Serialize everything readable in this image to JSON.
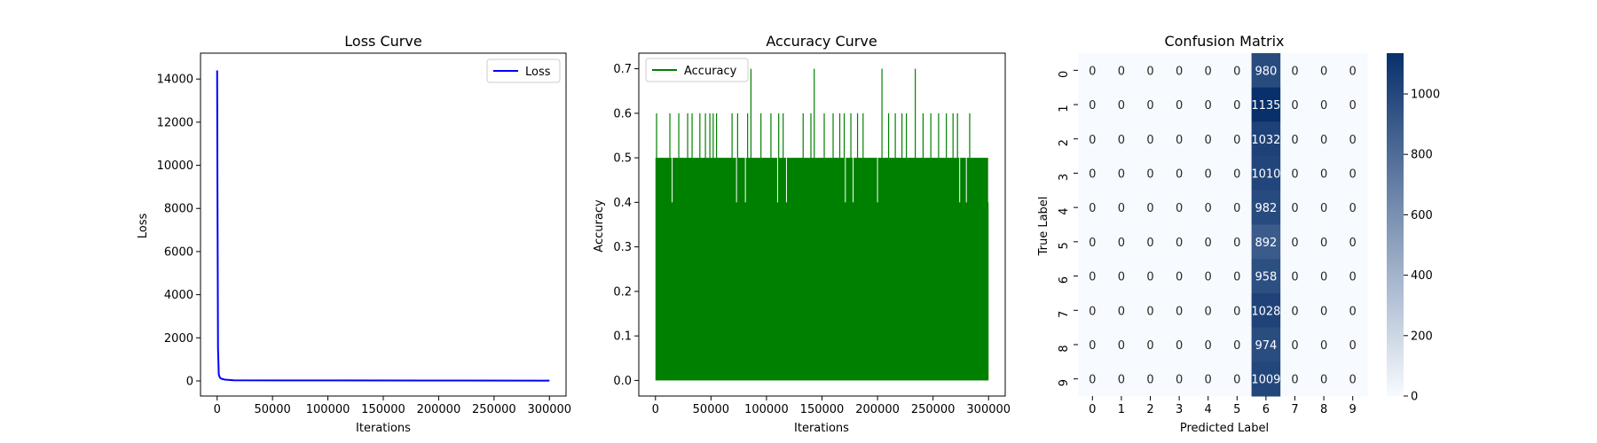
{
  "chart_data": [
    {
      "type": "line",
      "title": "Loss Curve",
      "xlabel": "Iterations",
      "ylabel": "Loss",
      "xlim": [
        -15000,
        315000
      ],
      "ylim": [
        -700,
        15200
      ],
      "xticks": [
        0,
        50000,
        100000,
        150000,
        200000,
        250000,
        300000
      ],
      "yticks": [
        0,
        2000,
        4000,
        6000,
        8000,
        10000,
        12000,
        14000
      ],
      "legend": "top-right",
      "series": [
        {
          "name": "Loss",
          "color": "#0000ff",
          "x": [
            0,
            300,
            800,
            1500,
            2500,
            4000,
            7000,
            15000,
            60000,
            190000,
            220000,
            290000,
            300000
          ],
          "y": [
            14400,
            9000,
            1500,
            300,
            150,
            100,
            60,
            30,
            25,
            20,
            20,
            15,
            15
          ]
        }
      ]
    },
    {
      "type": "line",
      "title": "Accuracy Curve",
      "xlabel": "Iterations",
      "ylabel": "Accuracy",
      "xlim": [
        -15000,
        315000
      ],
      "ylim": [
        -0.035,
        0.735
      ],
      "xticks": [
        0,
        50000,
        100000,
        150000,
        200000,
        250000,
        300000
      ],
      "yticks": [
        0.0,
        0.1,
        0.2,
        0.3,
        0.4,
        0.5,
        0.6,
        0.7
      ],
      "legend": "top-left",
      "series": [
        {
          "name": "Accuracy",
          "color": "#008000",
          "band": {
            "x_start": 0,
            "x_end": 300000,
            "min": 0.0,
            "max": 0.5
          },
          "spikes": [
            {
              "x": 1000,
              "y": 0.6
            },
            {
              "x": 13000,
              "y": 0.6
            },
            {
              "x": 21000,
              "y": 0.6
            },
            {
              "x": 29000,
              "y": 0.6
            },
            {
              "x": 33000,
              "y": 0.6
            },
            {
              "x": 40000,
              "y": 0.6
            },
            {
              "x": 45000,
              "y": 0.6
            },
            {
              "x": 49000,
              "y": 0.6
            },
            {
              "x": 52000,
              "y": 0.6
            },
            {
              "x": 55000,
              "y": 0.6
            },
            {
              "x": 69000,
              "y": 0.6
            },
            {
              "x": 74000,
              "y": 0.6
            },
            {
              "x": 83000,
              "y": 0.6
            },
            {
              "x": 86000,
              "y": 0.7
            },
            {
              "x": 95000,
              "y": 0.6
            },
            {
              "x": 104000,
              "y": 0.6
            },
            {
              "x": 111000,
              "y": 0.6
            },
            {
              "x": 115000,
              "y": 0.6
            },
            {
              "x": 133000,
              "y": 0.6
            },
            {
              "x": 140000,
              "y": 0.6
            },
            {
              "x": 143000,
              "y": 0.7
            },
            {
              "x": 152000,
              "y": 0.6
            },
            {
              "x": 160000,
              "y": 0.6
            },
            {
              "x": 166000,
              "y": 0.6
            },
            {
              "x": 170000,
              "y": 0.6
            },
            {
              "x": 176000,
              "y": 0.6
            },
            {
              "x": 182000,
              "y": 0.6
            },
            {
              "x": 187000,
              "y": 0.6
            },
            {
              "x": 204000,
              "y": 0.7
            },
            {
              "x": 210000,
              "y": 0.6
            },
            {
              "x": 216000,
              "y": 0.6
            },
            {
              "x": 222000,
              "y": 0.6
            },
            {
              "x": 226000,
              "y": 0.6
            },
            {
              "x": 234000,
              "y": 0.7
            },
            {
              "x": 241000,
              "y": 0.6
            },
            {
              "x": 248000,
              "y": 0.6
            },
            {
              "x": 255000,
              "y": 0.6
            },
            {
              "x": 262000,
              "y": 0.6
            },
            {
              "x": 268000,
              "y": 0.6
            },
            {
              "x": 272000,
              "y": 0.6
            },
            {
              "x": 283000,
              "y": 0.6
            }
          ],
          "dips": [
            {
              "x": 15000,
              "y": 0.4
            },
            {
              "x": 73000,
              "y": 0.4
            },
            {
              "x": 81000,
              "y": 0.4
            },
            {
              "x": 110000,
              "y": 0.4
            },
            {
              "x": 118000,
              "y": 0.4
            },
            {
              "x": 171000,
              "y": 0.4
            },
            {
              "x": 178000,
              "y": 0.4
            },
            {
              "x": 200000,
              "y": 0.4
            },
            {
              "x": 274000,
              "y": 0.4
            },
            {
              "x": 280000,
              "y": 0.4
            },
            {
              "x": 300000,
              "y": 0.4
            }
          ]
        }
      ]
    },
    {
      "type": "heatmap",
      "title": "Confusion Matrix",
      "xlabel": "Predicted Label",
      "ylabel": "True Label",
      "x_categories": [
        "0",
        "1",
        "2",
        "3",
        "4",
        "5",
        "6",
        "7",
        "8",
        "9"
      ],
      "y_categories": [
        "0",
        "1",
        "2",
        "3",
        "4",
        "5",
        "6",
        "7",
        "8",
        "9"
      ],
      "colorscale": "Blues",
      "vmin": 0,
      "vmax": 1135,
      "colorbar_ticks": [
        0,
        200,
        400,
        600,
        800,
        1000
      ],
      "values": [
        [
          0,
          0,
          0,
          0,
          0,
          0,
          980,
          0,
          0,
          0
        ],
        [
          0,
          0,
          0,
          0,
          0,
          0,
          1135,
          0,
          0,
          0
        ],
        [
          0,
          0,
          0,
          0,
          0,
          0,
          1032,
          0,
          0,
          0
        ],
        [
          0,
          0,
          0,
          0,
          0,
          0,
          1010,
          0,
          0,
          0
        ],
        [
          0,
          0,
          0,
          0,
          0,
          0,
          982,
          0,
          0,
          0
        ],
        [
          0,
          0,
          0,
          0,
          0,
          0,
          892,
          0,
          0,
          0
        ],
        [
          0,
          0,
          0,
          0,
          0,
          0,
          958,
          0,
          0,
          0
        ],
        [
          0,
          0,
          0,
          0,
          0,
          0,
          1028,
          0,
          0,
          0
        ],
        [
          0,
          0,
          0,
          0,
          0,
          0,
          974,
          0,
          0,
          0
        ],
        [
          0,
          0,
          0,
          0,
          0,
          0,
          1009,
          0,
          0,
          0
        ]
      ]
    }
  ]
}
